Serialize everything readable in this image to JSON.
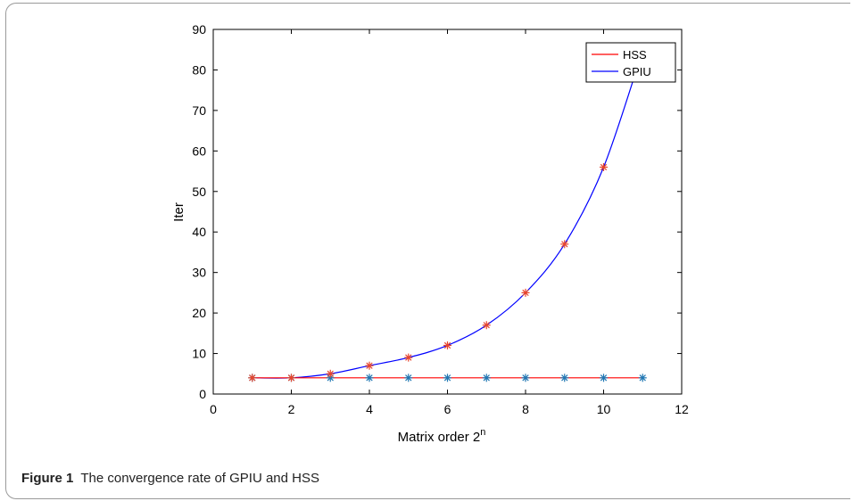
{
  "caption": {
    "label": "Figure 1",
    "text": "The convergence rate of GPIU and HSS"
  },
  "chart_data": {
    "type": "line",
    "xlabel": "Matrix order 2",
    "xlabel_superscript": "n",
    "ylabel": "Iter",
    "xlim": [
      0,
      12
    ],
    "ylim": [
      0,
      90
    ],
    "xticks": [
      0,
      2,
      4,
      6,
      8,
      10,
      12
    ],
    "yticks": [
      0,
      10,
      20,
      30,
      40,
      50,
      60,
      70,
      80,
      90
    ],
    "legend_position": "top-right",
    "series": [
      {
        "name": "HSS",
        "color": "#ff0000",
        "marker_color": "#1f77b4",
        "x": [
          1,
          2,
          3,
          4,
          5,
          6,
          7,
          8,
          9,
          10,
          11
        ],
        "y": [
          4,
          4,
          4,
          4,
          4,
          4,
          4,
          4,
          4,
          4,
          4
        ]
      },
      {
        "name": "GPIU",
        "color": "#0000ff",
        "marker_color": "#e8452c",
        "x": [
          1,
          2,
          3,
          4,
          5,
          6,
          7,
          8,
          9,
          10
        ],
        "y": [
          4,
          4,
          5,
          7,
          9,
          12,
          17,
          25,
          37,
          56
        ]
      }
    ]
  }
}
